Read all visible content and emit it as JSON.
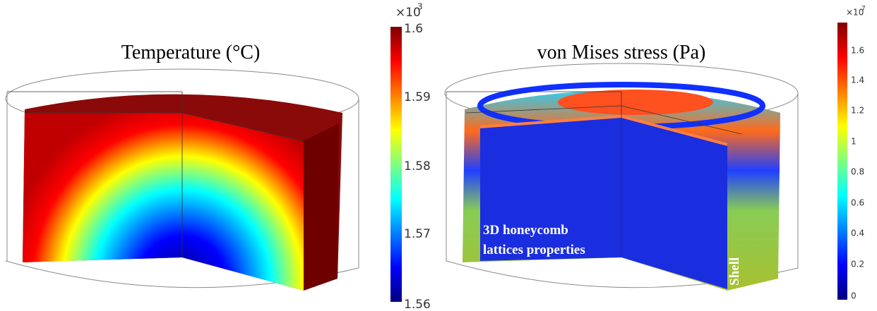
{
  "panels": [
    {
      "title": "Temperature (°C)",
      "colorbar": {
        "multiplier": "×10",
        "exponent": "3",
        "ticks": [
          "1.6",
          "1.59",
          "1.58",
          "1.57",
          "1.56"
        ]
      }
    },
    {
      "title": "von Mises stress (Pa)",
      "colorbar": {
        "multiplier": "×10",
        "exponent": "7",
        "ticks": [
          "1.6",
          "1.4",
          "1.2",
          "1",
          "0.8",
          "0.6",
          "0.4",
          "0.2",
          "0"
        ]
      },
      "annotations": {
        "core_line1": "3D honeycomb",
        "core_line2": "lattices properties",
        "shell": "Shell"
      }
    }
  ]
}
